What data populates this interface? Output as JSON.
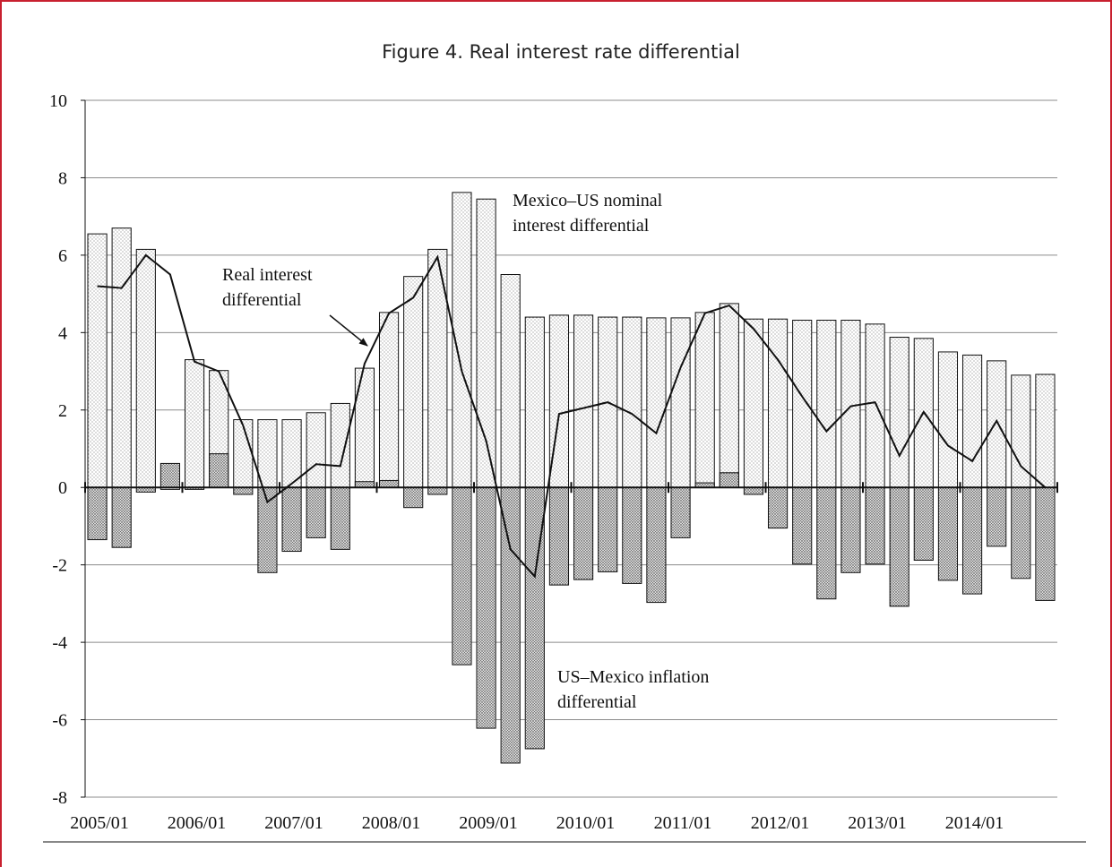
{
  "chart_data": {
    "type": "bar",
    "title": "Figure 4. Real interest rate differential",
    "xlabel": "",
    "ylabel": "",
    "ylim": [
      -8,
      10
    ],
    "yticks": [
      10,
      8,
      6,
      4,
      2,
      0,
      -2,
      -4,
      -6,
      -8
    ],
    "x_tick_labels": [
      "2005/01",
      "2006/01",
      "2007/01",
      "2008/01",
      "2009/01",
      "2010/01",
      "2011/01",
      "2012/01",
      "2013/01",
      "2014/01"
    ],
    "frequency": "quarterly",
    "grid": true,
    "legend": "none",
    "series": [
      {
        "kind": "bar",
        "values": [
          6.55,
          6.7,
          6.15,
          -0.05,
          3.3,
          3.02,
          1.75,
          1.75,
          1.75,
          1.93,
          2.17,
          3.08,
          4.52,
          5.45,
          6.15,
          7.62,
          7.45,
          5.5,
          4.4,
          4.45,
          4.45,
          4.4,
          4.4,
          4.38,
          4.38,
          4.52,
          4.75,
          4.35,
          4.35,
          4.32,
          4.32,
          4.32,
          4.22,
          3.88,
          3.85,
          3.5,
          3.42,
          3.27,
          2.9,
          2.92
        ]
      },
      {
        "kind": "bar",
        "values": [
          -1.35,
          -1.55,
          -0.12,
          0.62,
          -0.05,
          0.87,
          -0.18,
          -2.2,
          -1.65,
          -1.3,
          -1.6,
          0.15,
          0.18,
          -0.52,
          -0.18,
          -4.58,
          -6.22,
          -7.12,
          -6.75,
          -2.52,
          -2.38,
          -2.18,
          -2.48,
          -2.97,
          -1.3,
          0.12,
          0.38,
          -0.18,
          -1.05,
          -1.98,
          -2.88,
          -2.2,
          -1.98,
          -3.07,
          -1.88,
          -2.4,
          -2.75,
          -1.52,
          -2.35,
          -2.92
        ]
      },
      {
        "kind": "line",
        "values": [
          5.2,
          5.15,
          6.0,
          5.5,
          3.25,
          3.0,
          1.6,
          -0.38,
          0.1,
          0.6,
          0.55,
          3.2,
          4.5,
          4.9,
          5.95,
          3.0,
          1.2,
          -1.6,
          -2.3,
          1.9,
          2.05,
          2.2,
          1.9,
          1.4,
          3.1,
          4.5,
          4.7,
          4.1,
          3.3,
          2.35,
          1.45,
          2.1,
          2.2,
          0.82,
          1.95,
          1.08,
          0.68,
          1.72,
          0.55,
          0.0
        ]
      }
    ],
    "annotations": {
      "nominal": [
        "Mexico–US nominal",
        "interest differential"
      ],
      "real": [
        "Real interest",
        "differential"
      ],
      "inflation": [
        "US–Mexico inflation",
        "differential"
      ]
    },
    "colors": {
      "frame": "#c8202f",
      "bar_light_fill": "#ffffff",
      "bar_dark_fill": "#d9d9d9",
      "line": "#111111",
      "grid": "#8c8c8c"
    }
  }
}
